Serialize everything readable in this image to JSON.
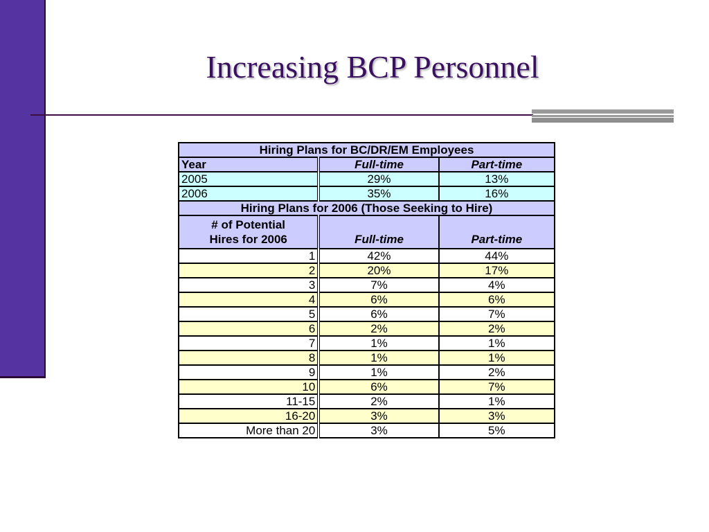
{
  "slide": {
    "title": "Increasing BCP Personnel"
  },
  "table": {
    "section1": {
      "title": "Hiring Plans for BC/DR/EM Employees",
      "headers": [
        "Year",
        "Full-time",
        "Part-time"
      ],
      "rows": [
        [
          "2005",
          "29%",
          "13%"
        ],
        [
          "2006",
          "35%",
          "16%"
        ]
      ]
    },
    "section2": {
      "title": "Hiring Plans for 2006 (Those Seeking to Hire)",
      "header_line1": "# of Potential",
      "header_line2": "Hires for 2006",
      "headers": [
        "# of Potential Hires for 2006",
        "Full-time",
        "Part-time"
      ],
      "rows": [
        [
          "1",
          "42%",
          "44%"
        ],
        [
          "2",
          "20%",
          "17%"
        ],
        [
          "3",
          "7%",
          "4%"
        ],
        [
          "4",
          "6%",
          "6%"
        ],
        [
          "5",
          "6%",
          "7%"
        ],
        [
          "6",
          "2%",
          "2%"
        ],
        [
          "7",
          "1%",
          "1%"
        ],
        [
          "8",
          "1%",
          "1%"
        ],
        [
          "9",
          "1%",
          "2%"
        ],
        [
          "10",
          "6%",
          "7%"
        ],
        [
          "11-15",
          "2%",
          "1%"
        ],
        [
          "16-20",
          "3%",
          "3%"
        ],
        [
          "More than 20",
          "3%",
          "5%"
        ]
      ]
    }
  },
  "colors": {
    "sidebar": "#5533a0",
    "title": "#3a1060",
    "header_fill": "#ccccff",
    "year_row_fill": "#ccffff",
    "alt_row_fill": "#ffffcc"
  }
}
